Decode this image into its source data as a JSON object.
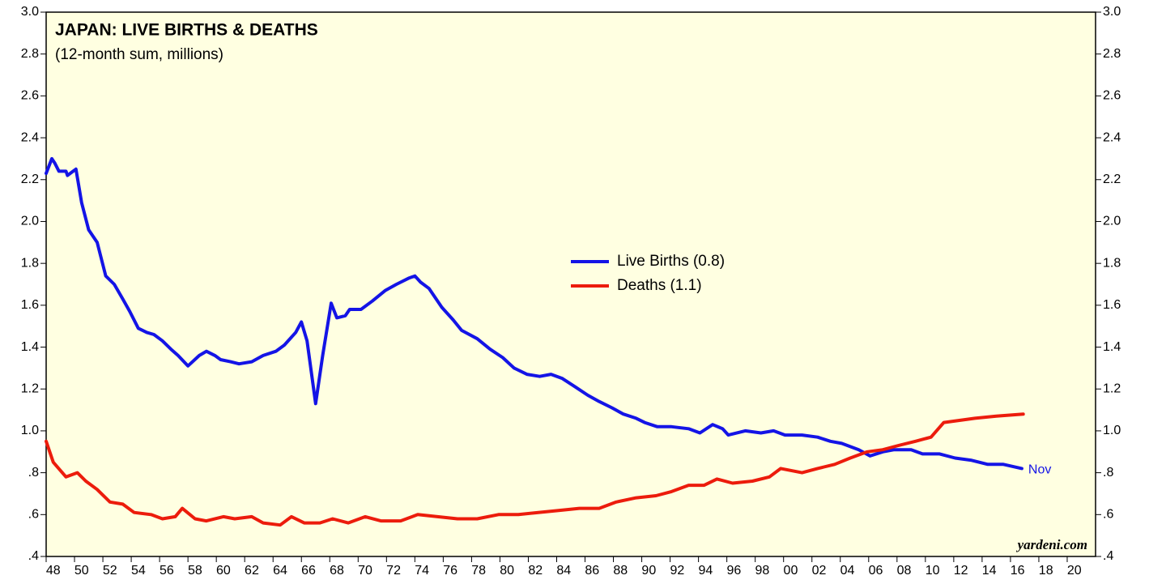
{
  "chart_data": {
    "type": "line",
    "title": "JAPAN: LIVE BIRTHS & DEATHS",
    "subtitle": "(12-month sum, millions)",
    "annotation": "Nov",
    "source": "yardeni.com",
    "legend": "center",
    "xlim": [
      1948,
      2022
    ],
    "ylim": [
      0.4,
      3.0
    ],
    "yticks": [
      {
        "value": 3.0,
        "label": "3.0"
      },
      2.8,
      2.6,
      2.4,
      2.2,
      {
        "value": 2.0,
        "label": "2.0"
      },
      1.8,
      1.6,
      1.4,
      1.2,
      {
        "value": 1.0,
        "label": "1.0"
      },
      {
        "value": 0.8,
        "label": ".8"
      },
      {
        "value": 0.6,
        "label": ".6"
      },
      {
        "value": 0.4,
        "label": ".4"
      }
    ],
    "xticks": [
      {
        "value": 1948,
        "label": "48"
      },
      {
        "value": 1950,
        "label": "50"
      },
      {
        "value": 1952,
        "label": "52"
      },
      {
        "value": 1954,
        "label": "54"
      },
      {
        "value": 1956,
        "label": "56"
      },
      {
        "value": 1958,
        "label": "58"
      },
      {
        "value": 1960,
        "label": "60"
      },
      {
        "value": 1962,
        "label": "62"
      },
      {
        "value": 1964,
        "label": "64"
      },
      {
        "value": 1966,
        "label": "66"
      },
      {
        "value": 1968,
        "label": "68"
      },
      {
        "value": 1970,
        "label": "70"
      },
      {
        "value": 1972,
        "label": "72"
      },
      {
        "value": 1974,
        "label": "74"
      },
      {
        "value": 1976,
        "label": "76"
      },
      {
        "value": 1978,
        "label": "78"
      },
      {
        "value": 1980,
        "label": "80"
      },
      {
        "value": 1982,
        "label": "82"
      },
      {
        "value": 1984,
        "label": "84"
      },
      {
        "value": 1986,
        "label": "86"
      },
      {
        "value": 1988,
        "label": "88"
      },
      {
        "value": 1990,
        "label": "90"
      },
      {
        "value": 1992,
        "label": "92"
      },
      {
        "value": 1994,
        "label": "94"
      },
      {
        "value": 1996,
        "label": "96"
      },
      {
        "value": 1998,
        "label": "98"
      },
      {
        "value": 2000,
        "label": "00"
      },
      {
        "value": 2002,
        "label": "02"
      },
      {
        "value": 2004,
        "label": "04"
      },
      {
        "value": 2006,
        "label": "06"
      },
      {
        "value": 2008,
        "label": "08"
      },
      {
        "value": 2010,
        "label": "10"
      },
      {
        "value": 2012,
        "label": "12"
      },
      {
        "value": 2014,
        "label": "14"
      },
      {
        "value": 2016,
        "label": "16"
      },
      {
        "value": 2018,
        "label": "18"
      },
      {
        "value": 2020,
        "label": "20"
      }
    ],
    "series": [
      {
        "name": "Live Births (0.8)",
        "color": "#1414e6",
        "x": [
          1948.0,
          1948.4,
          1948.6,
          1948.9,
          1949.4,
          1949.5,
          1949.9,
          1950.1,
          1950.5,
          1951.0,
          1951.6,
          1952.2,
          1952.8,
          1953.4,
          1953.9,
          1954.5,
          1955.1,
          1955.6,
          1956.2,
          1956.8,
          1957.3,
          1958.0,
          1958.8,
          1959.3,
          1959.9,
          1960.3,
          1961.0,
          1961.6,
          1962.5,
          1963.3,
          1964.2,
          1964.8,
          1965.6,
          1966.0,
          1966.4,
          1967.0,
          1967.5,
          1968.1,
          1968.5,
          1969.1,
          1969.4,
          1970.2,
          1971.0,
          1971.9,
          1972.7,
          1973.6,
          1974.0,
          1974.4,
          1975.0,
          1975.9,
          1976.7,
          1977.3,
          1978.4,
          1979.3,
          1980.2,
          1981.0,
          1981.9,
          1982.8,
          1983.6,
          1984.4,
          1985.3,
          1986.2,
          1987.0,
          1987.9,
          1988.7,
          1989.6,
          1990.2,
          1991.1,
          1992.1,
          1993.3,
          1994.1,
          1995.0,
          1995.7,
          1996.1,
          1997.3,
          1998.4,
          1999.3,
          2000.1,
          2001.3,
          2002.4,
          2003.3,
          2004.1,
          2005.3,
          2006.1,
          2007.0,
          2007.8,
          2009.0,
          2009.8,
          2011.0,
          2012.1,
          2013.2,
          2014.4,
          2015.5,
          2016.8
        ],
        "values": [
          2.23,
          2.3,
          2.28,
          2.24,
          2.24,
          2.22,
          2.24,
          2.25,
          2.09,
          1.96,
          1.9,
          1.74,
          1.7,
          1.63,
          1.57,
          1.49,
          1.47,
          1.46,
          1.43,
          1.39,
          1.36,
          1.31,
          1.36,
          1.38,
          1.36,
          1.34,
          1.33,
          1.32,
          1.33,
          1.36,
          1.38,
          1.41,
          1.47,
          1.52,
          1.43,
          1.13,
          1.36,
          1.61,
          1.54,
          1.55,
          1.58,
          1.58,
          1.62,
          1.67,
          1.7,
          1.73,
          1.74,
          1.71,
          1.68,
          1.59,
          1.53,
          1.48,
          1.44,
          1.39,
          1.35,
          1.3,
          1.27,
          1.26,
          1.27,
          1.25,
          1.21,
          1.17,
          1.14,
          1.11,
          1.08,
          1.06,
          1.04,
          1.02,
          1.02,
          1.01,
          0.99,
          1.03,
          1.01,
          0.98,
          1.0,
          0.99,
          1.0,
          0.98,
          0.98,
          0.97,
          0.95,
          0.94,
          0.91,
          0.88,
          0.9,
          0.91,
          0.91,
          0.89,
          0.89,
          0.87,
          0.86,
          0.84,
          0.84,
          0.82
        ]
      },
      {
        "name": "Deaths (1.1)",
        "color": "#ec1c0c",
        "x": [
          1948.0,
          1948.5,
          1949.4,
          1950.2,
          1950.8,
          1951.6,
          1952.5,
          1953.4,
          1954.2,
          1955.4,
          1956.2,
          1957.1,
          1957.6,
          1958.5,
          1959.3,
          1960.5,
          1961.3,
          1962.5,
          1963.3,
          1964.5,
          1965.3,
          1966.2,
          1967.3,
          1968.2,
          1969.3,
          1970.5,
          1971.6,
          1973.0,
          1974.2,
          1975.6,
          1977.0,
          1978.4,
          1979.9,
          1981.3,
          1982.7,
          1984.2,
          1985.6,
          1987.0,
          1988.2,
          1989.6,
          1991.0,
          1992.1,
          1993.3,
          1994.4,
          1995.3,
          1996.4,
          1997.8,
          1999.0,
          1999.8,
          2001.3,
          2002.4,
          2003.6,
          2004.7,
          2005.9,
          2007.0,
          2008.1,
          2009.3,
          2010.4,
          2011.3,
          2012.4,
          2013.5,
          2015.0,
          2016.9
        ],
        "values": [
          0.95,
          0.85,
          0.78,
          0.8,
          0.76,
          0.72,
          0.66,
          0.65,
          0.61,
          0.6,
          0.58,
          0.59,
          0.63,
          0.58,
          0.57,
          0.59,
          0.58,
          0.59,
          0.56,
          0.55,
          0.59,
          0.56,
          0.56,
          0.58,
          0.56,
          0.59,
          0.57,
          0.57,
          0.6,
          0.59,
          0.58,
          0.58,
          0.6,
          0.6,
          0.61,
          0.62,
          0.63,
          0.63,
          0.66,
          0.68,
          0.69,
          0.71,
          0.74,
          0.74,
          0.77,
          0.75,
          0.76,
          0.78,
          0.82,
          0.8,
          0.82,
          0.84,
          0.87,
          0.9,
          0.91,
          0.93,
          0.95,
          0.97,
          1.04,
          1.05,
          1.06,
          1.07,
          1.08
        ]
      }
    ]
  }
}
